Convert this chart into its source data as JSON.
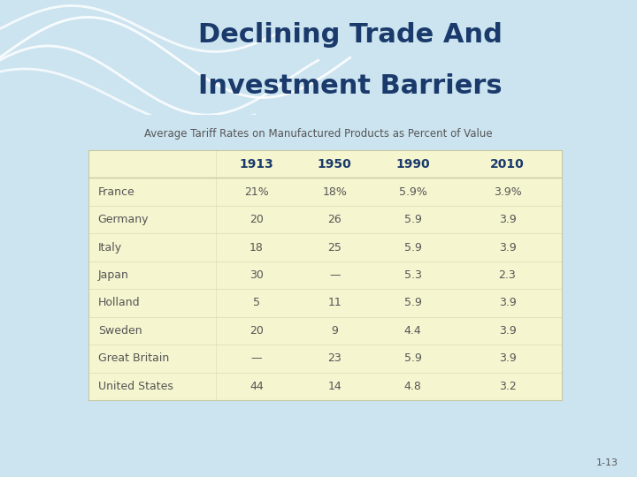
{
  "title_line1": "Declining Trade And",
  "title_line2": "Investment Barriers",
  "subtitle": "Average Tariff Rates on Manufactured Products as Percent of Value",
  "header_bg": "#a8d4e8",
  "title_color": "#1a3a6b",
  "table_bg": "#f5f5d0",
  "table_border_color": "#c8c8a0",
  "page_bg": "#cce4f0",
  "columns": [
    "",
    "1913",
    "1950",
    "1990",
    "2010"
  ],
  "rows": [
    [
      "France",
      "21%",
      "18%",
      "5.9%",
      "3.9%"
    ],
    [
      "Germany",
      "20",
      "26",
      "5.9",
      "3.9"
    ],
    [
      "Italy",
      "18",
      "25",
      "5.9",
      "3.9"
    ],
    [
      "Japan",
      "30",
      "—",
      "5.3",
      "2.3"
    ],
    [
      "Holland",
      "5",
      "11",
      "5.9",
      "3.9"
    ],
    [
      "Sweden",
      "20",
      "9",
      "4.4",
      "3.9"
    ],
    [
      "Great Britain",
      "—",
      "23",
      "5.9",
      "3.9"
    ],
    [
      "United States",
      "44",
      "14",
      "4.8",
      "3.2"
    ]
  ],
  "col_header_color": "#1a3a6b",
  "row_label_color": "#555555",
  "data_color": "#555555",
  "slide_number": "1-13",
  "header_wave_color": "#ffffff",
  "title_fontsize": 22,
  "subtitle_fontsize": 8.5,
  "table_fontsize": 9,
  "header_fontsize": 10
}
